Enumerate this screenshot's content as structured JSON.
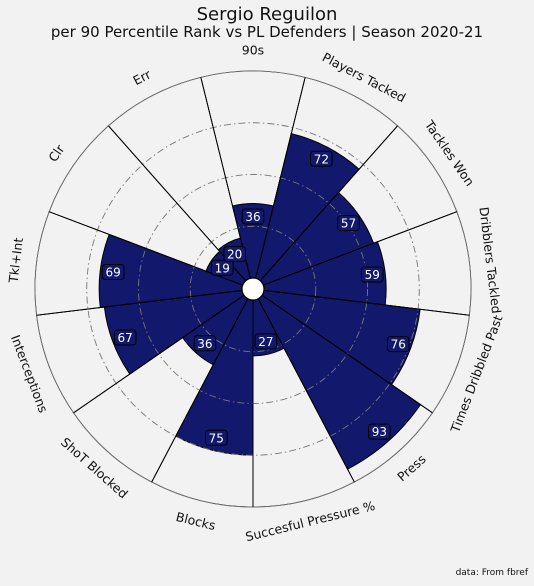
{
  "chart_data": {
    "type": "radar",
    "title": "Sergio Reguilon",
    "subtitle": "per 90 Percentile Rank vs PL Defenders | Season 2020-21",
    "source": "data: From fbref",
    "scale": [
      0,
      100
    ],
    "ring_values": [
      25,
      50,
      75,
      100
    ],
    "bar_color": "#12186b",
    "label_box_color": "#12186b",
    "background_color": "#f2f2f2",
    "categories": [
      "90s",
      "Players Tacked",
      "Tackles Won",
      "Dribblers Tackled",
      "Times Dribbled Past",
      "Press",
      "Succesful Pressure %",
      "Blocks",
      "ShoT Blocked",
      "Interceptions",
      "Tkl+Int",
      "Clr",
      "Err"
    ],
    "values": [
      36,
      72,
      57,
      59,
      76,
      93,
      27,
      75,
      36,
      67,
      69,
      19,
      20
    ]
  }
}
